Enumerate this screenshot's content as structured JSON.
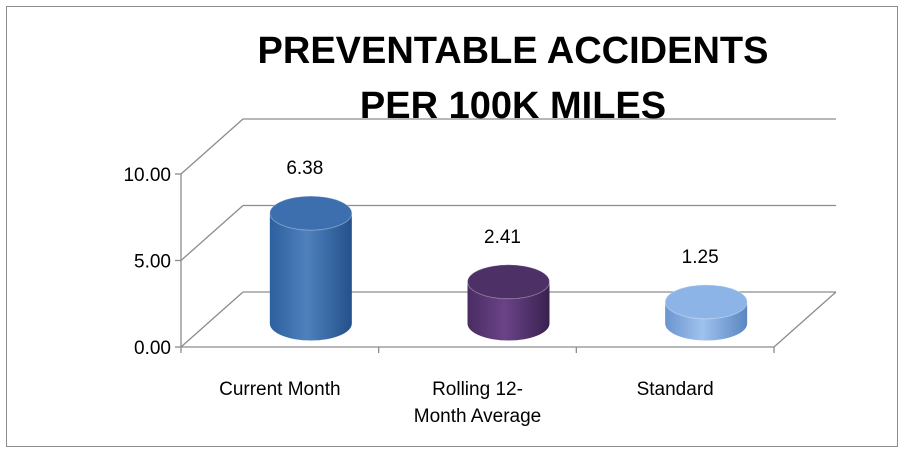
{
  "chart_data": {
    "type": "bar",
    "title_lines": [
      "PREVENTABLE ACCIDENTS",
      "PER 100K MILES"
    ],
    "categories": [
      [
        "Current Month"
      ],
      [
        "Rolling 12-",
        "Month Average"
      ],
      [
        "Standard"
      ]
    ],
    "values": [
      6.38,
      2.41,
      1.25
    ],
    "data_labels": [
      "6.38",
      "2.41",
      "1.25"
    ],
    "y_ticks": [
      "0.00",
      "5.00",
      "10.00"
    ],
    "ylim": [
      0,
      10
    ],
    "grid": true,
    "bar_shape": "cylinder",
    "legend": "none",
    "colors": {
      "bar_1": "#4f81bd",
      "bar_2": "#5f3b7a",
      "bar_3": "#7fa8de",
      "axis": "#8c8c8c"
    }
  }
}
